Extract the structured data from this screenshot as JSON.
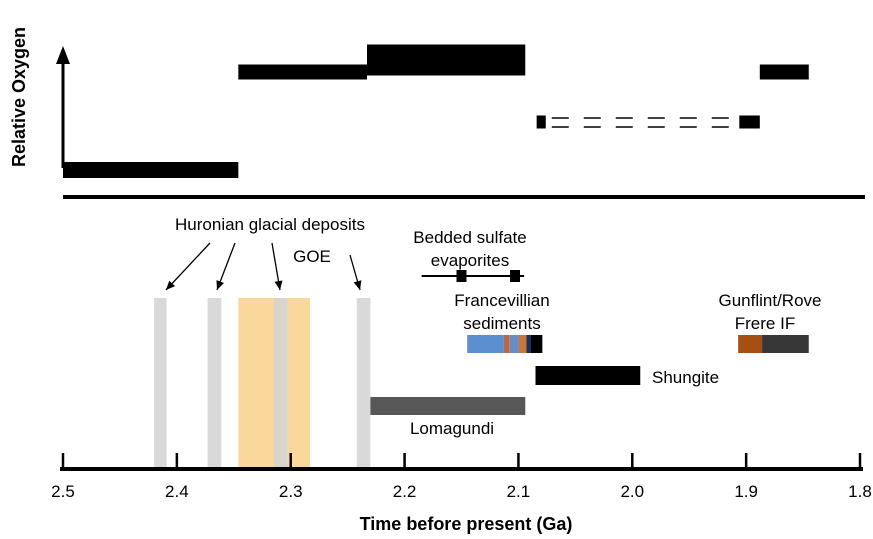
{
  "y_axis": {
    "label": "Relative Oxygen"
  },
  "x_axis": {
    "label": "Time before present (Ga)",
    "ticks": [
      "2.5",
      "2.4",
      "2.3",
      "2.2",
      "2.1",
      "2.0",
      "1.9",
      "1.8"
    ],
    "range": [
      2.5,
      1.8
    ]
  },
  "oxygen_levels": [
    {
      "start": 2.5,
      "end": 2.346,
      "level": "low"
    },
    {
      "start": 2.346,
      "end": 2.233,
      "level": "high"
    },
    {
      "start": 2.233,
      "end": 2.094,
      "level": "highest"
    },
    {
      "start": 2.084,
      "end": 2.076,
      "level": "middle"
    },
    {
      "start": 2.076,
      "end": 1.906,
      "level": "middle",
      "style": "dashed"
    },
    {
      "start": 1.906,
      "end": 1.888,
      "level": "middle"
    },
    {
      "start": 1.888,
      "end": 1.845,
      "level": "high"
    }
  ],
  "events": {
    "huronian": {
      "label": "Huronian glacial deposits",
      "intervals": [
        [
          2.42,
          2.409
        ],
        [
          2.373,
          2.361
        ],
        [
          2.315,
          2.303
        ],
        [
          2.242,
          2.23
        ]
      ],
      "color": "#d4d4d4"
    },
    "goe": {
      "label": "GOE",
      "interval": [
        2.346,
        2.283
      ],
      "color": "#fad89b"
    },
    "sulfate": {
      "label_line1": "Bedded sulfate",
      "label_line2": "evaporites",
      "range": [
        2.185,
        2.095
      ],
      "markers": [
        2.15,
        2.103
      ]
    },
    "francevillian": {
      "label_line1": "Francevillian",
      "label_line2": "sediments",
      "segments": [
        {
          "start": 2.145,
          "end": 2.113,
          "color": "#5b8fcf"
        },
        {
          "start": 2.113,
          "end": 2.108,
          "color": "#b66a4d"
        },
        {
          "start": 2.108,
          "end": 2.1,
          "color": "#6a8fc5"
        },
        {
          "start": 2.1,
          "end": 2.093,
          "color": "#c6763e"
        },
        {
          "start": 2.093,
          "end": 2.089,
          "color": "#1b2f5a"
        },
        {
          "start": 2.089,
          "end": 2.079,
          "color": "#000000"
        }
      ]
    },
    "gunflint": {
      "label_line1": "Gunflint/Rove",
      "label_line2": "Frere IF",
      "segments": [
        {
          "start": 1.907,
          "end": 1.886,
          "color": "#a54f13"
        },
        {
          "start": 1.886,
          "end": 1.845,
          "color": "#373737"
        }
      ]
    },
    "shungite": {
      "label": "Shungite",
      "interval": [
        2.085,
        1.993
      ],
      "color": "#000000"
    },
    "lomagundi": {
      "label": "Lomagundi",
      "interval": [
        2.23,
        2.094
      ],
      "color": "#575757"
    }
  }
}
